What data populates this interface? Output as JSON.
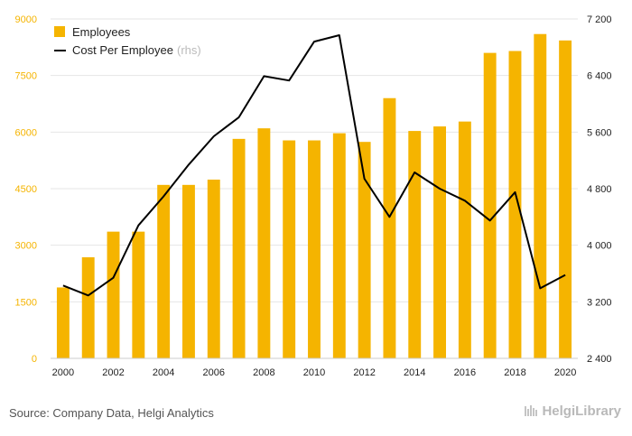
{
  "chart_data": {
    "type": "bar",
    "x": [
      2000,
      2001,
      2002,
      2003,
      2004,
      2005,
      2006,
      2007,
      2008,
      2009,
      2010,
      2011,
      2012,
      2013,
      2014,
      2015,
      2016,
      2017,
      2018,
      2019,
      2020
    ],
    "x_tick_labels": [
      "2000",
      "2002",
      "2004",
      "2006",
      "2008",
      "2010",
      "2012",
      "2014",
      "2016",
      "2018",
      "2020"
    ],
    "series": [
      {
        "name": "Employees",
        "type": "bar",
        "axis": "left",
        "color": "#f5b400",
        "values": [
          1880,
          2680,
          3360,
          3360,
          4600,
          4600,
          4740,
          5820,
          6100,
          5780,
          5780,
          5970,
          5740,
          6900,
          6030,
          6150,
          6280,
          8100,
          8150,
          8600,
          8430
        ]
      },
      {
        "name": "Cost Per Employee",
        "name_suffix": "(rhs)",
        "type": "line",
        "axis": "right",
        "color": "#000000",
        "values": [
          3430,
          3290,
          3540,
          4280,
          4690,
          5140,
          5540,
          5810,
          6390,
          6330,
          6880,
          6970,
          4940,
          4400,
          5030,
          4800,
          4630,
          4350,
          4750,
          3390,
          3580
        ]
      }
    ],
    "y_left": {
      "ylim": [
        0,
        9000
      ],
      "ticks": [
        "0",
        "1500",
        "3000",
        "4500",
        "6000",
        "7500",
        "9000"
      ],
      "tick_color": "#f5b400"
    },
    "y_right": {
      "ylim": [
        2400,
        7200
      ],
      "ticks": [
        "2 400",
        "3 200",
        "4 000",
        "4 800",
        "5 600",
        "6 400",
        "7 200"
      ]
    },
    "grid": true,
    "legend": "top-left"
  },
  "footer": {
    "source": "Source: Company Data, Helgi Analytics",
    "brand": "HelgiLibrary"
  }
}
